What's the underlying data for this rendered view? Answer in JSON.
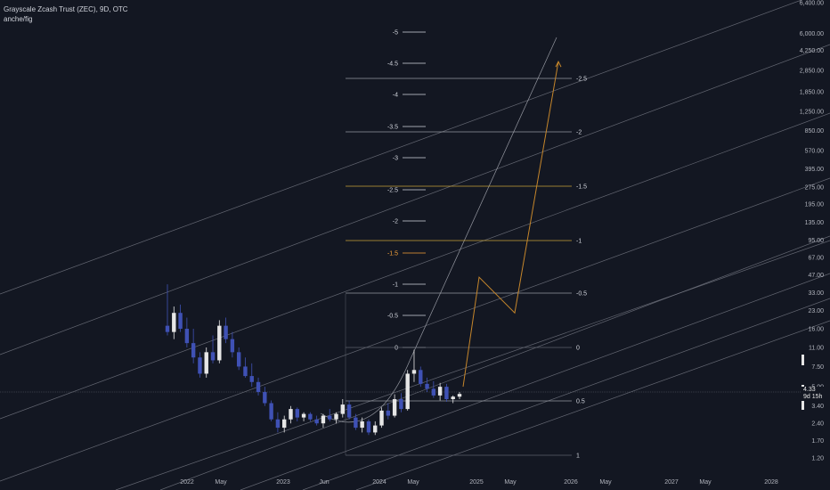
{
  "header": {
    "title": "Grayscale Zcash Trust (ZEC), 9D, OTC",
    "indicator": "anche/fig"
  },
  "price_tag": {
    "price": "4.33",
    "countdown": "9d 15h"
  },
  "colors": {
    "background": "#131722",
    "bull": "#e6e6e6",
    "bear": "#3f51b5",
    "channel": "#787b86",
    "arrow": "#c6862b",
    "fib_orange": "#f7a23a"
  },
  "chart_data": {
    "type": "candlestick",
    "title": "Grayscale Zcash Trust (ZEC), 9D, OTC",
    "y_scale": "log",
    "y_ticks": [
      "6,400.00",
      "6,000.00",
      "4,250.00",
      "2,850.00",
      "1,850.00",
      "1,250.00",
      "850.00",
      "570.00",
      "395.00",
      "275.00",
      "195.00",
      "135.00",
      "95.00",
      "67.00",
      "47.00",
      "33.00",
      "23.00",
      "16.00",
      "11.00",
      "7.50",
      "5.00",
      "3.40",
      "2.40",
      "1.70",
      "1.20"
    ],
    "x_ticks": [
      "2022",
      "May",
      "2023",
      "Jun",
      "2024",
      "May",
      "2025",
      "May",
      "2026",
      "May",
      "2027",
      "May",
      "2028"
    ],
    "current_price": 4.33,
    "left_fib_levels": [
      "-5",
      "-4.5",
      "-4",
      "-3.5",
      "-3",
      "-2.5",
      "-2",
      "-1.5",
      "-1",
      "-0.5",
      "0"
    ],
    "right_fib_levels": [
      "-2.5",
      "-2",
      "-1.5",
      "-1",
      "-0.5",
      "0",
      "0.5",
      "1"
    ],
    "projection_path": [
      {
        "date": "2024-11",
        "price": 5.0
      },
      {
        "date": "2025-01",
        "price": 45.0
      },
      {
        "date": "2025-05",
        "price": 22.0
      },
      {
        "date": "2025-12",
        "price": 3400.0
      }
    ],
    "candles": [
      {
        "o": 17,
        "h": 39,
        "l": 14,
        "c": 15
      },
      {
        "o": 15,
        "h": 25,
        "l": 13,
        "c": 22
      },
      {
        "o": 22,
        "h": 26,
        "l": 15,
        "c": 16
      },
      {
        "o": 16,
        "h": 20,
        "l": 11,
        "c": 12
      },
      {
        "o": 12,
        "h": 16,
        "l": 8,
        "c": 9
      },
      {
        "o": 9,
        "h": 10,
        "l": 6,
        "c": 6.5
      },
      {
        "o": 6.5,
        "h": 11,
        "l": 6,
        "c": 10
      },
      {
        "o": 10,
        "h": 14,
        "l": 8,
        "c": 8.5
      },
      {
        "o": 8.5,
        "h": 19,
        "l": 8,
        "c": 17
      },
      {
        "o": 17,
        "h": 20,
        "l": 12,
        "c": 13
      },
      {
        "o": 13,
        "h": 15,
        "l": 9,
        "c": 10
      },
      {
        "o": 10,
        "h": 11,
        "l": 7,
        "c": 7.5
      },
      {
        "o": 7.5,
        "h": 9,
        "l": 6,
        "c": 6.2
      },
      {
        "o": 6.2,
        "h": 8,
        "l": 5,
        "c": 5.5
      },
      {
        "o": 5.5,
        "h": 6,
        "l": 4.2,
        "c": 4.5
      },
      {
        "o": 4.5,
        "h": 5,
        "l": 3.4,
        "c": 3.6
      },
      {
        "o": 3.6,
        "h": 3.8,
        "l": 2.5,
        "c": 2.6
      },
      {
        "o": 2.6,
        "h": 3.0,
        "l": 2.0,
        "c": 2.2
      },
      {
        "o": 2.2,
        "h": 2.8,
        "l": 2.0,
        "c": 2.6
      },
      {
        "o": 2.6,
        "h": 3.4,
        "l": 2.4,
        "c": 3.2
      },
      {
        "o": 3.2,
        "h": 3.3,
        "l": 2.5,
        "c": 2.7
      },
      {
        "o": 2.7,
        "h": 3.0,
        "l": 2.5,
        "c": 2.9
      },
      {
        "o": 2.9,
        "h": 3.0,
        "l": 2.5,
        "c": 2.6
      },
      {
        "o": 2.6,
        "h": 2.8,
        "l": 2.3,
        "c": 2.4
      },
      {
        "o": 2.4,
        "h": 2.9,
        "l": 2.2,
        "c": 2.8
      },
      {
        "o": 2.8,
        "h": 3.2,
        "l": 2.5,
        "c": 2.6
      },
      {
        "o": 2.6,
        "h": 3.0,
        "l": 2.4,
        "c": 2.9
      },
      {
        "o": 2.9,
        "h": 3.9,
        "l": 2.7,
        "c": 3.5
      },
      {
        "o": 3.5,
        "h": 3.8,
        "l": 2.6,
        "c": 2.7
      },
      {
        "o": 2.7,
        "h": 2.9,
        "l": 2.1,
        "c": 2.2
      },
      {
        "o": 2.2,
        "h": 2.7,
        "l": 2.0,
        "c": 2.5
      },
      {
        "o": 2.5,
        "h": 2.6,
        "l": 1.9,
        "c": 2.0
      },
      {
        "o": 2.0,
        "h": 2.5,
        "l": 1.9,
        "c": 2.3
      },
      {
        "o": 2.3,
        "h": 3.3,
        "l": 2.2,
        "c": 3.1
      },
      {
        "o": 3.1,
        "h": 3.6,
        "l": 2.6,
        "c": 2.8
      },
      {
        "o": 2.8,
        "h": 4.3,
        "l": 2.7,
        "c": 3.9
      },
      {
        "o": 3.9,
        "h": 4.4,
        "l": 3.0,
        "c": 3.2
      },
      {
        "o": 3.2,
        "h": 7.0,
        "l": 3.1,
        "c": 6.5
      },
      {
        "o": 6.5,
        "h": 10.5,
        "l": 5.5,
        "c": 7.0
      },
      {
        "o": 7.0,
        "h": 7.5,
        "l": 5.0,
        "c": 5.3
      },
      {
        "o": 5.3,
        "h": 6.0,
        "l": 4.5,
        "c": 4.8
      },
      {
        "o": 4.8,
        "h": 5.6,
        "l": 4.0,
        "c": 4.2
      },
      {
        "o": 4.2,
        "h": 5.4,
        "l": 3.8,
        "c": 5.0
      },
      {
        "o": 5.0,
        "h": 5.3,
        "l": 3.7,
        "c": 3.9
      },
      {
        "o": 3.9,
        "h": 4.2,
        "l": 3.6,
        "c": 4.1
      },
      {
        "o": 4.1,
        "h": 4.5,
        "l": 3.9,
        "c": 4.33
      }
    ]
  }
}
